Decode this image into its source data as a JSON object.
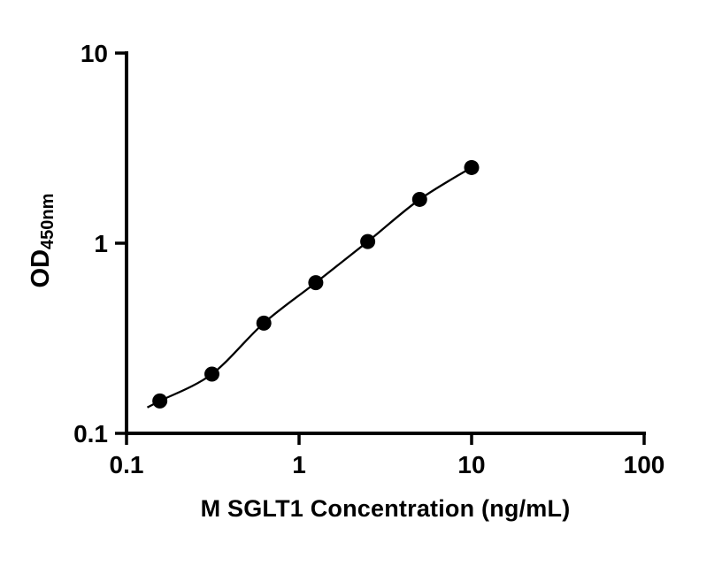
{
  "chart_data": {
    "type": "scatter",
    "title": "",
    "xlabel": "M SGLT1 Concentration (ng/mL)",
    "ylabel": "OD",
    "ylabel_sub": "450nm",
    "x_scale": "log10",
    "y_scale": "log10",
    "xlim": [
      0.1,
      100
    ],
    "ylim": [
      0.1,
      10
    ],
    "x_ticks": [
      0.1,
      1,
      10,
      100
    ],
    "x_tick_labels": [
      "0.1",
      "1",
      "10",
      "100"
    ],
    "y_ticks": [
      0.1,
      1,
      10
    ],
    "y_tick_labels": [
      "0.1",
      "1",
      "10"
    ],
    "grid": false,
    "legend": "none",
    "axis_color": "#000000",
    "background_color": "#ffffff",
    "series": [
      {
        "marker": "filled-circle",
        "color": "#000000",
        "points": [
          {
            "x": 0.156,
            "y": 0.148
          },
          {
            "x": 0.3125,
            "y": 0.205
          },
          {
            "x": 0.625,
            "y": 0.38
          },
          {
            "x": 1.25,
            "y": 0.62
          },
          {
            "x": 2.5,
            "y": 1.02
          },
          {
            "x": 5.0,
            "y": 1.7
          },
          {
            "x": 10.0,
            "y": 2.5
          }
        ]
      }
    ],
    "fit_line": {
      "x_start": 0.132,
      "x_end": 10.0,
      "color": "#000000"
    }
  }
}
